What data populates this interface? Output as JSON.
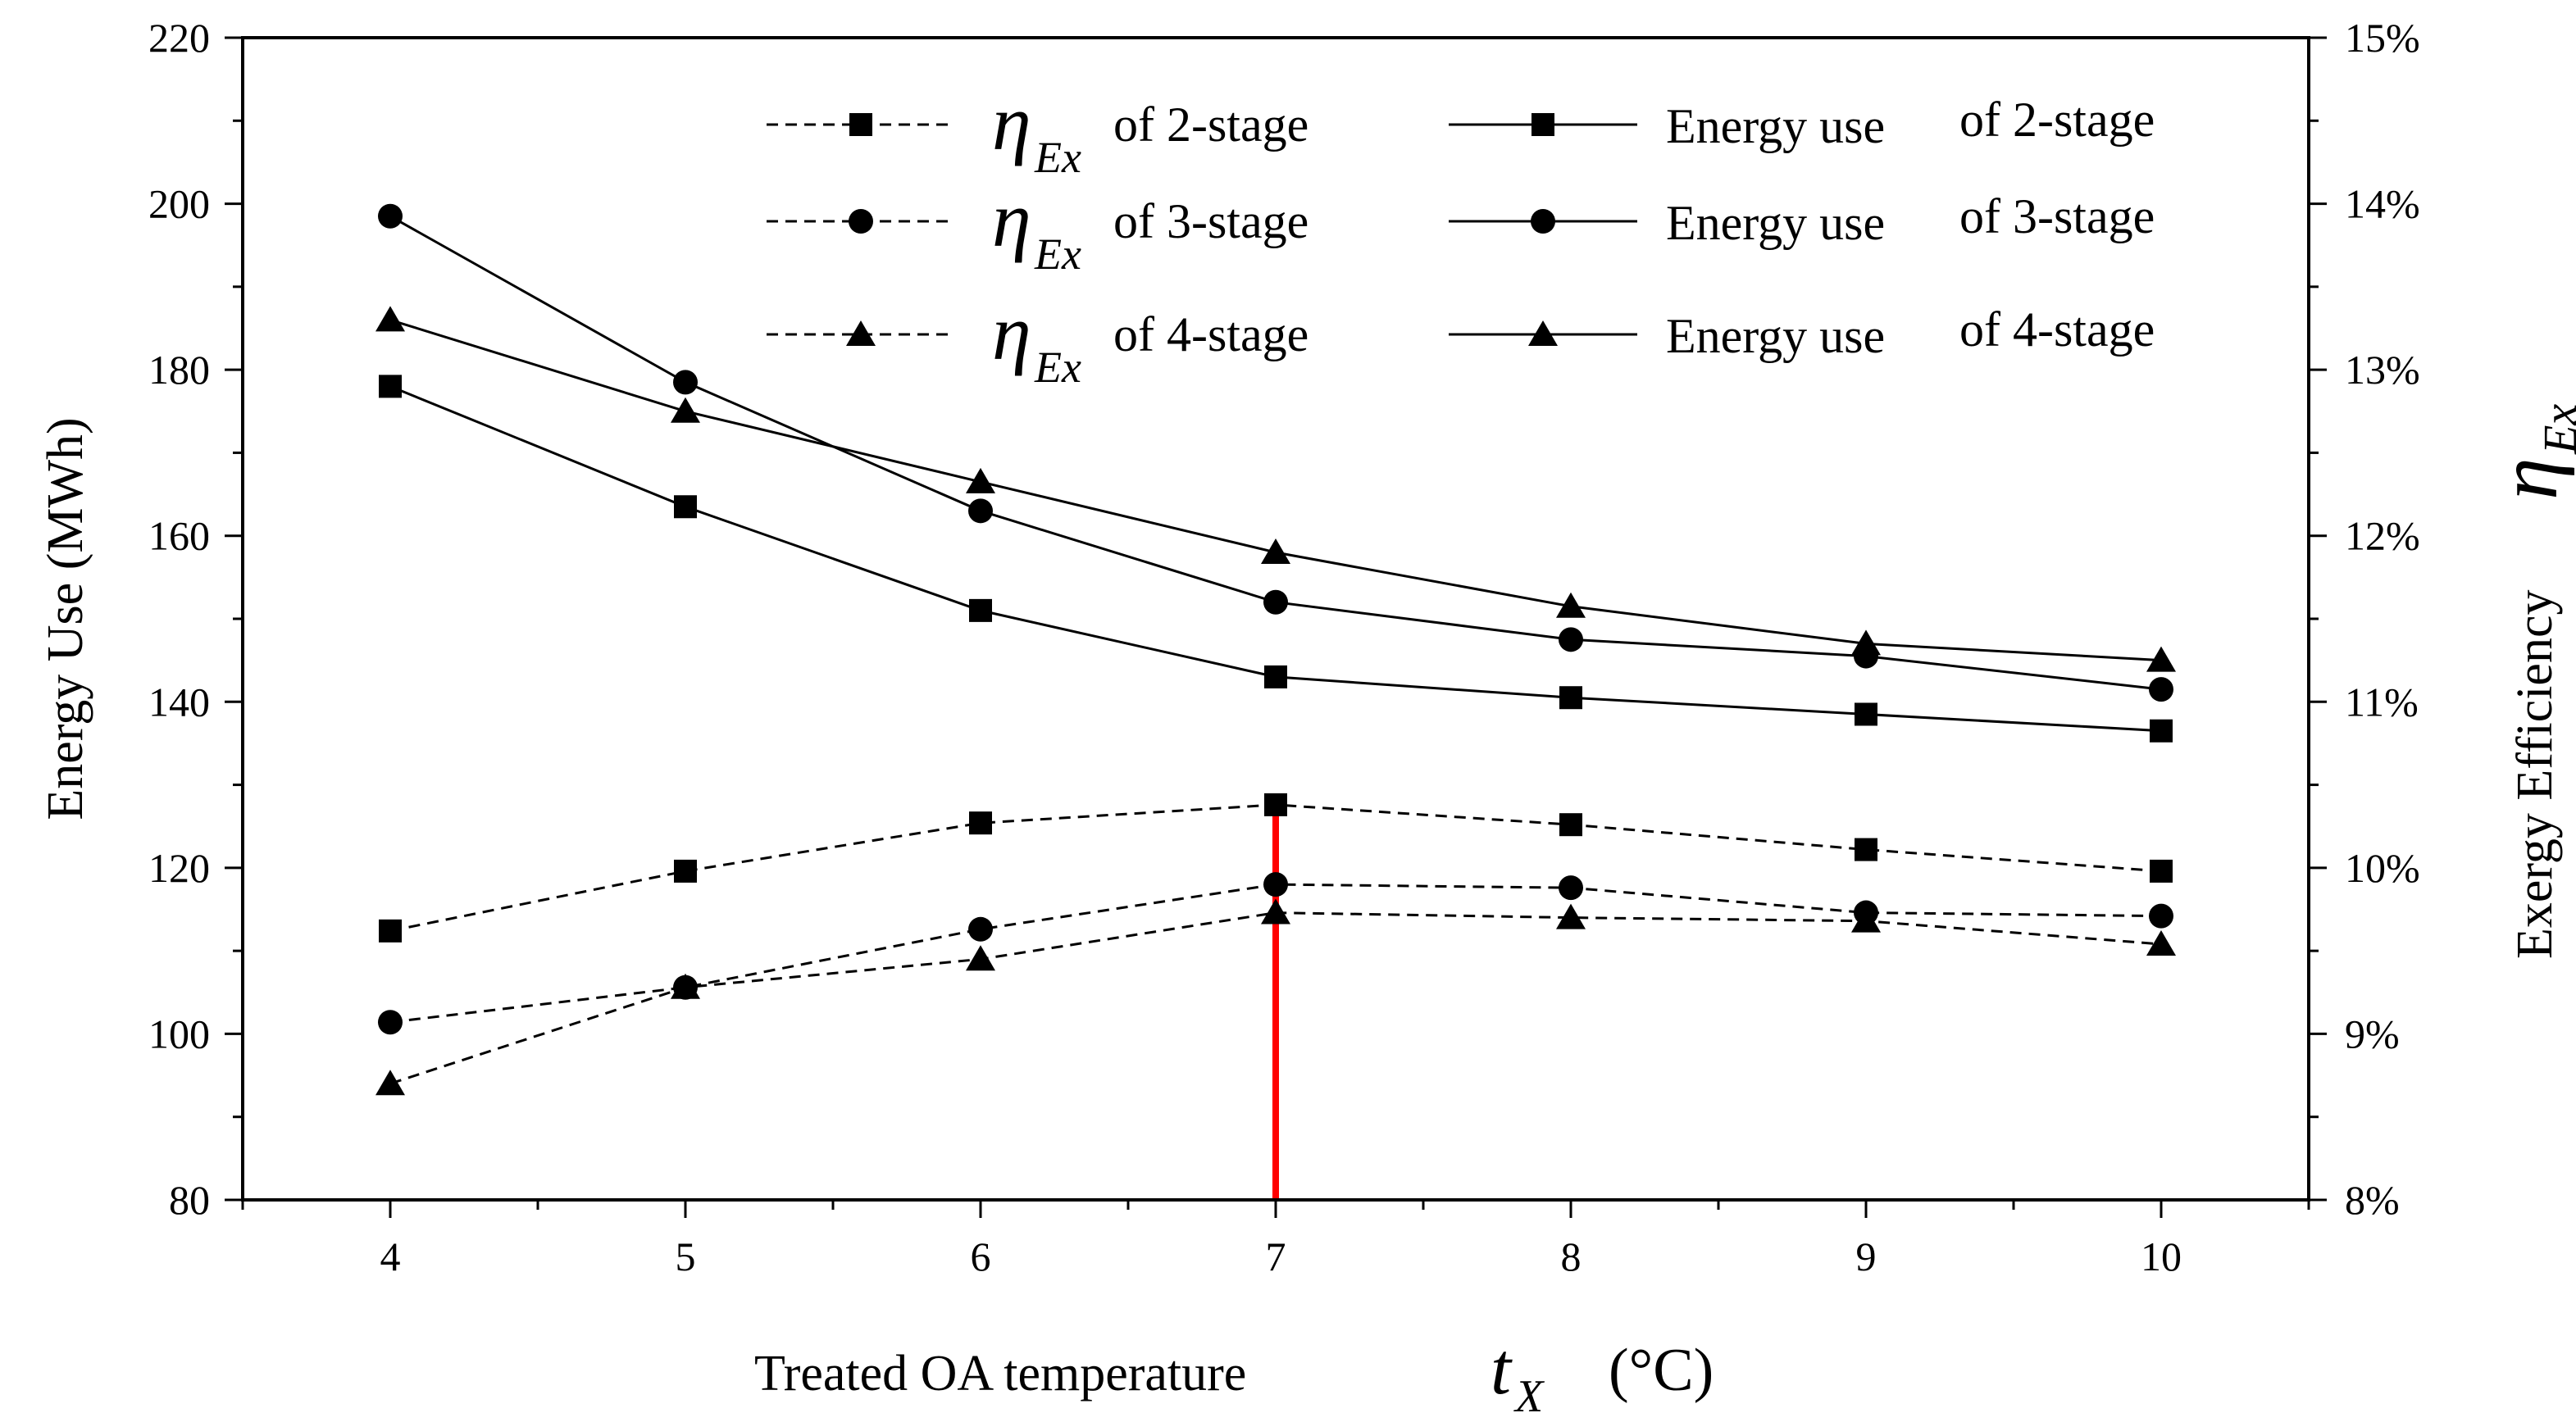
{
  "chart_data": {
    "type": "line",
    "x": [
      4,
      5,
      6,
      7,
      8,
      9,
      10
    ],
    "x_ticks": [
      "4",
      "5",
      "6",
      "7",
      "8",
      "9",
      "10"
    ],
    "xlabel_text": "Treated OA temperature",
    "xlabel_var": "t",
    "xlabel_sub": "X",
    "xlabel_unit": "(°C)",
    "xlim": [
      3.5,
      10.5
    ],
    "ylabel_left": "Energy Use (MWh)",
    "ylim_left": [
      80,
      220
    ],
    "y_ticks_left": [
      "80",
      "100",
      "120",
      "140",
      "160",
      "180",
      "200",
      "220"
    ],
    "ylabel_right_text": "Exergy Efficiency",
    "ylabel_right_var": "η",
    "ylabel_right_sub": "Ex",
    "ylim_right": [
      8,
      15
    ],
    "y_ticks_right": [
      "8%",
      "9%",
      "10%",
      "11%",
      "12%",
      "13%",
      "14%",
      "15%"
    ],
    "series": [
      {
        "name": "ηEx of 2-stage",
        "legend_prefix": "η",
        "legend_sub": "Ex",
        "legend_suffix": "of 2-stage",
        "axis": "right",
        "style": "dashed",
        "marker": "square",
        "values": [
          9.62,
          9.98,
          10.27,
          10.38,
          10.26,
          10.11,
          9.98
        ]
      },
      {
        "name": "ηEx of 3-stage",
        "legend_prefix": "η",
        "legend_sub": "Ex",
        "legend_suffix": "of 3-stage",
        "axis": "right",
        "style": "dashed",
        "marker": "circle",
        "values": [
          9.07,
          9.28,
          9.63,
          9.9,
          9.88,
          9.73,
          9.71
        ]
      },
      {
        "name": "ηEx of 4-stage",
        "legend_prefix": "η",
        "legend_sub": "Ex",
        "legend_suffix": "of 4-stage",
        "axis": "right",
        "style": "dashed",
        "marker": "triangle",
        "values": [
          8.7,
          9.28,
          9.45,
          9.73,
          9.7,
          9.68,
          9.54
        ]
      },
      {
        "name": "Energy use of 2-stage",
        "legend_prefix": "Energy use",
        "legend_suffix": "of 2-stage",
        "axis": "left",
        "style": "solid",
        "marker": "square",
        "values": [
          178,
          163.5,
          151,
          143,
          140.5,
          138.5,
          136.5
        ]
      },
      {
        "name": "Energy use of 3-stage",
        "legend_prefix": "Energy use",
        "legend_suffix": "of 3-stage",
        "axis": "left",
        "style": "solid",
        "marker": "circle",
        "values": [
          198.5,
          178.5,
          163,
          152,
          147.5,
          145.5,
          141.5
        ]
      },
      {
        "name": "Energy use of 4-stage",
        "legend_prefix": "Energy use",
        "legend_suffix": "of 4-stage",
        "axis": "left",
        "style": "solid",
        "marker": "triangle",
        "values": [
          186,
          175,
          166.5,
          158,
          151.5,
          147,
          145
        ]
      }
    ],
    "annotation": {
      "type": "vertical-line",
      "x": 7,
      "from_y": 80,
      "to_y": 128,
      "color": "#ff0000"
    },
    "legend_position": "top",
    "grid": false
  }
}
